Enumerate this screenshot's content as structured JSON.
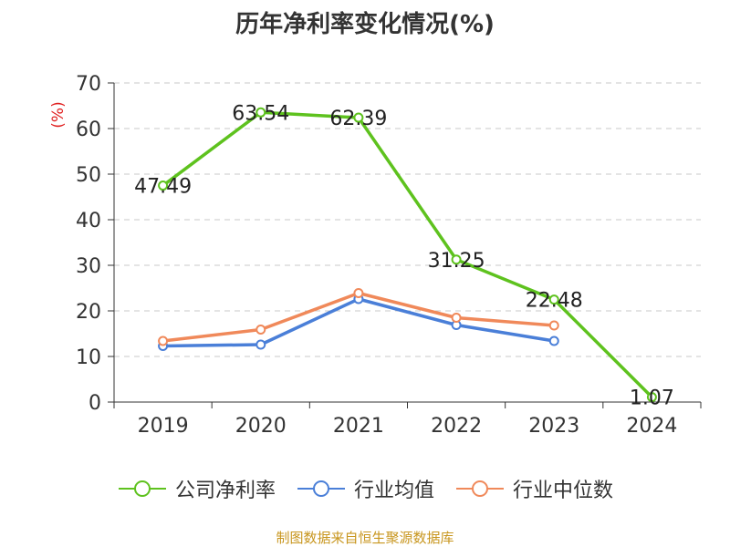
{
  "title": "历年净利率变化情况(%)",
  "source": "制图数据来自恒生聚源数据库",
  "chart_data": {
    "type": "line",
    "title": "历年净利率变化情况(%)",
    "ylabel": "(%)",
    "ylim": [
      0,
      70
    ],
    "yticks": [
      0,
      10,
      20,
      30,
      40,
      50,
      60,
      70
    ],
    "categories": [
      "2019",
      "2020",
      "2021",
      "2022",
      "2023",
      "2024"
    ],
    "grid": true,
    "legend_position": "bottom",
    "series": [
      {
        "name": "公司净利率",
        "color": "#5ec21e",
        "values": [
          47.49,
          63.54,
          62.39,
          31.25,
          22.48,
          1.07
        ],
        "labels": [
          "47.49",
          "63.54",
          "62.39",
          "31.25",
          "22.48",
          "1.07"
        ]
      },
      {
        "name": "行业均值",
        "color": "#4a7fd8",
        "values": [
          12.3,
          12.6,
          22.6,
          16.9,
          13.4,
          null
        ]
      },
      {
        "name": "行业中位数",
        "color": "#f0895a",
        "values": [
          13.4,
          15.9,
          23.9,
          18.5,
          16.8,
          null
        ]
      }
    ]
  }
}
